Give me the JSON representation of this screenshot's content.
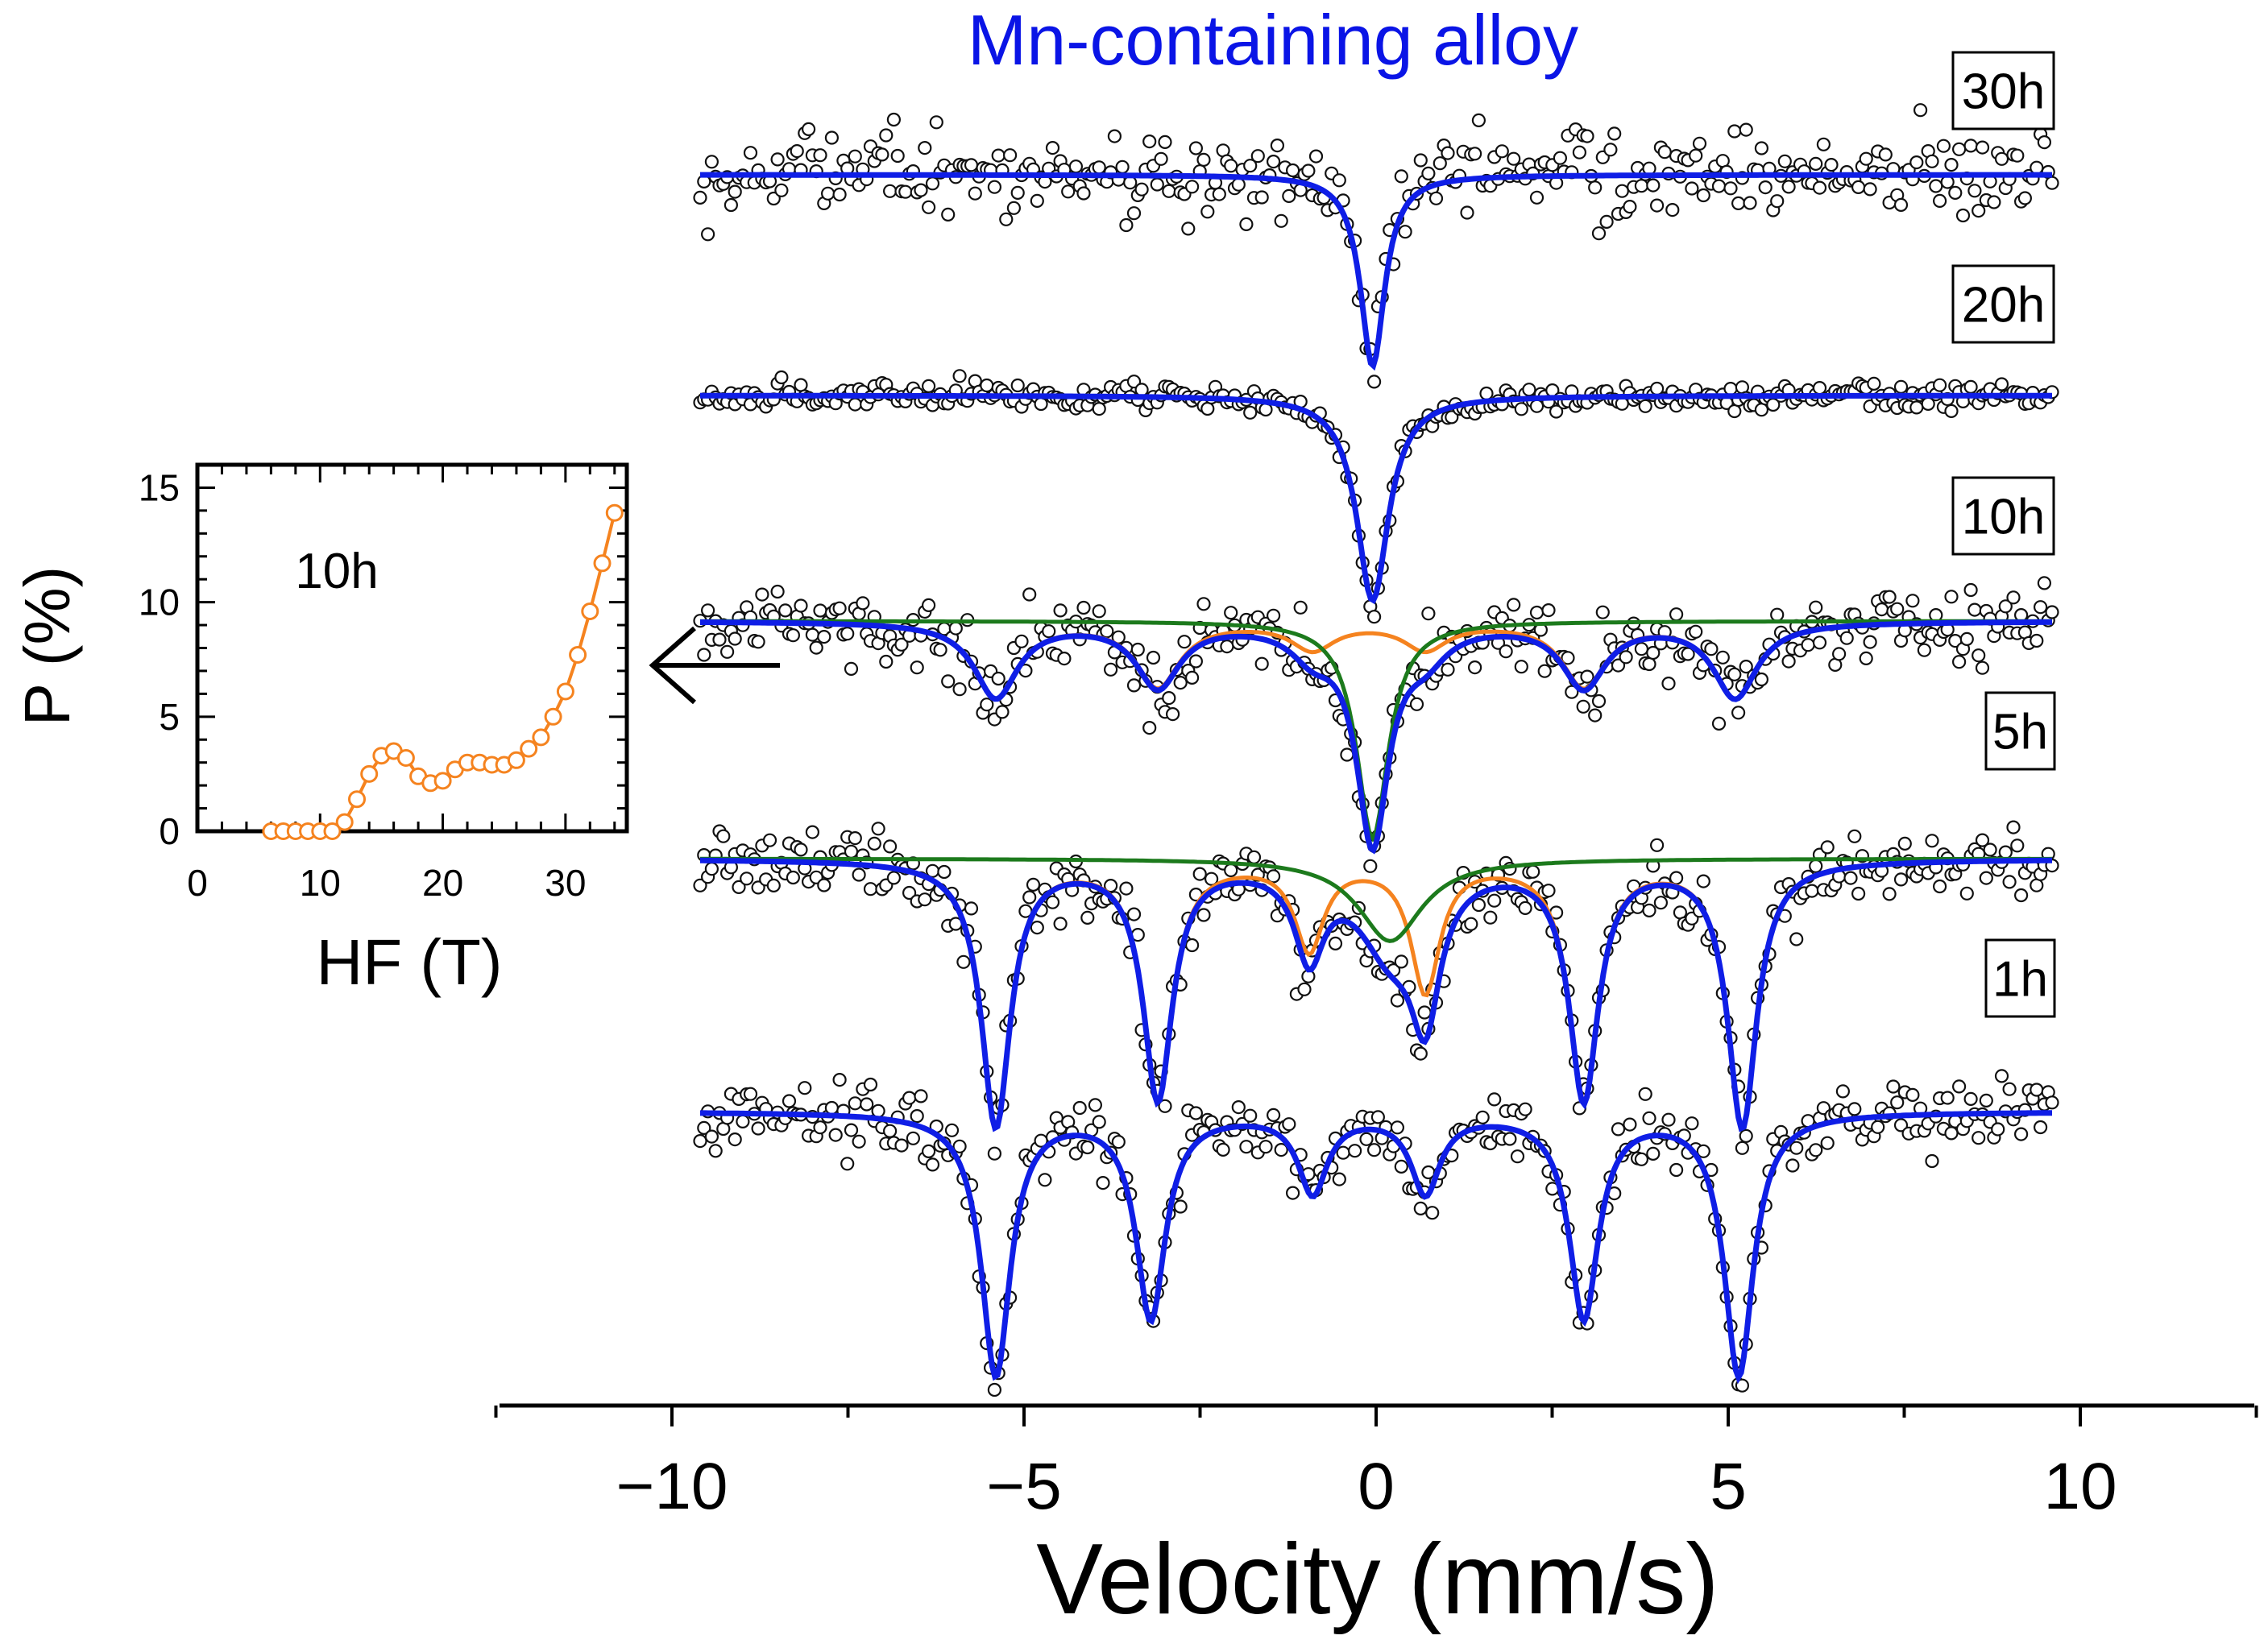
{
  "title": "Mn-containing alloy",
  "colors": {
    "title": "#0a14e6",
    "fit": "#0f1ee6",
    "orange": "#f5831f",
    "green": "#1c7a1c",
    "points": "#111111",
    "axis": "#000000"
  },
  "chart_data": [
    {
      "type": "scatter",
      "title": "Mn-containing alloy",
      "xlabel": "Velocity (mm/s)",
      "ylabel": "",
      "xlim": [
        -12.5,
        12.5
      ],
      "x_ticks": [
        -10,
        -5,
        0,
        5,
        10
      ],
      "x_tick_labels": [
        "−10",
        "−5",
        "0",
        "5",
        "10"
      ],
      "velocity_range": [
        -9.6,
        9.6
      ],
      "series": [
        {
          "name": "30h",
          "kind": "singlet",
          "center": -0.05,
          "depth": 0.95,
          "width": 0.42
        },
        {
          "name": "20h",
          "kind": "singlet",
          "center": -0.05,
          "depth": 0.95,
          "width": 0.55
        },
        {
          "name": "10h",
          "kind": "sextet_plus_singlet",
          "sextet_lines": [
            -5.4,
            -3.1,
            -0.9,
            0.7,
            2.95,
            5.1
          ],
          "sextet_depths": [
            0.34,
            0.29,
            0.12,
            0.12,
            0.29,
            0.34
          ],
          "sextet_width": 0.75,
          "singlet_center": -0.05,
          "singlet_depth": 0.98,
          "singlet_width": 0.55
        },
        {
          "name": "5h",
          "kind": "sextet_plus_singlet",
          "sextet_lines": [
            -5.4,
            -3.1,
            -0.95,
            0.7,
            2.95,
            5.2
          ],
          "sextet_depths": [
            1.0,
            0.89,
            0.33,
            0.49,
            0.89,
            1.0
          ],
          "sextet_width": 0.5,
          "singlet_center": 0.2,
          "singlet_depth": 0.31,
          "singlet_width": 1.1
        },
        {
          "name": "1h",
          "kind": "sextet",
          "sextet_lines": [
            -5.4,
            -3.2,
            -0.9,
            0.7,
            2.95,
            5.15
          ],
          "sextet_depths": [
            1.0,
            0.78,
            0.3,
            0.3,
            0.78,
            1.0
          ],
          "sextet_width": 0.5
        }
      ]
    },
    {
      "type": "line",
      "title": "10h",
      "xlabel": "HF (T)",
      "ylabel": "P (%)",
      "xlim": [
        0,
        35
      ],
      "ylim": [
        0,
        16
      ],
      "x_ticks": [
        0,
        10,
        20,
        30
      ],
      "y_ticks": [
        0,
        5,
        10,
        15
      ],
      "x": [
        6,
        7,
        8,
        9,
        10,
        11,
        12,
        13,
        14,
        15,
        16,
        17,
        18,
        19,
        20,
        21,
        22,
        23,
        24,
        25,
        26,
        27,
        28,
        29,
        30,
        31,
        32,
        33,
        34
      ],
      "y": [
        0,
        0,
        0,
        0,
        0,
        0,
        0.4,
        1.4,
        2.5,
        3.3,
        3.5,
        3.2,
        2.4,
        2.1,
        2.2,
        2.7,
        3.0,
        3.0,
        2.9,
        2.9,
        3.1,
        3.6,
        4.1,
        5.0,
        6.1,
        7.7,
        9.6,
        11.7,
        13.9
      ]
    }
  ]
}
